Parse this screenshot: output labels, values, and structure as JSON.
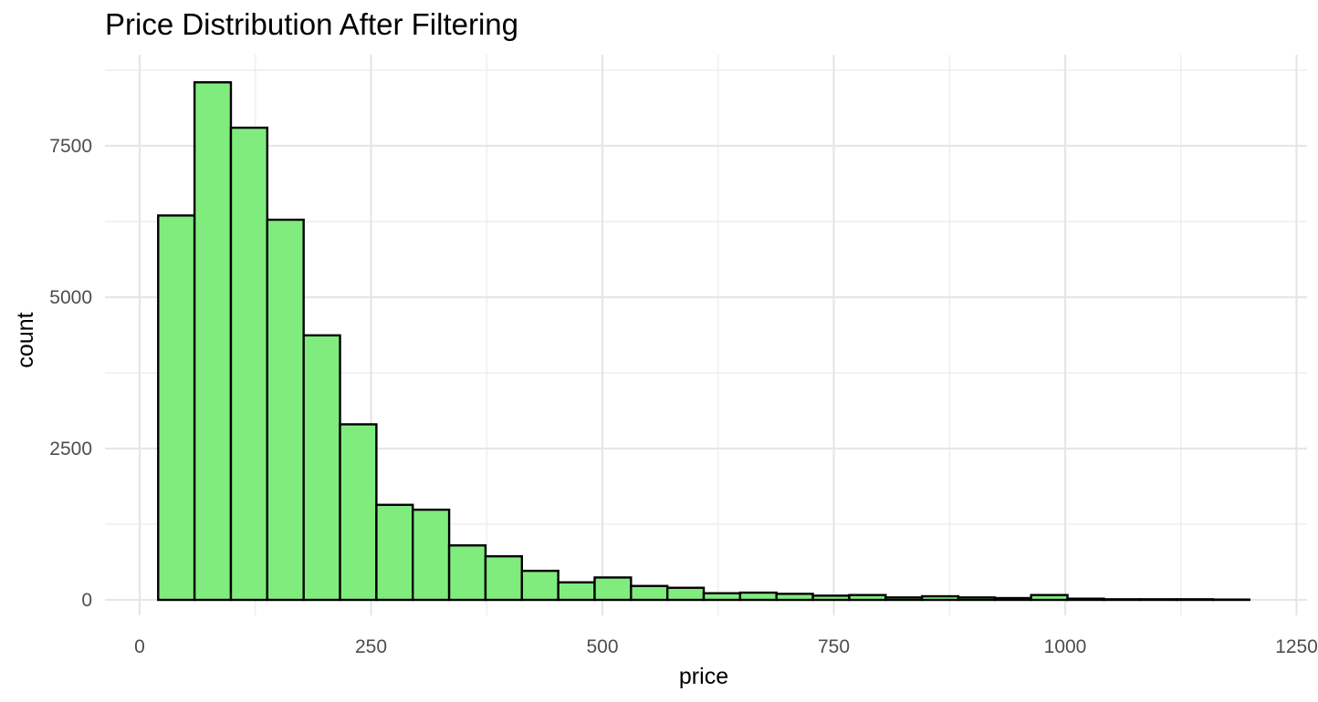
{
  "chart_data": {
    "type": "bar",
    "title": "Price Distribution After Filtering",
    "xlabel": "price",
    "ylabel": "count",
    "xlim": [
      -20,
      1260
    ],
    "ylim": [
      0,
      8900
    ],
    "x_ticks": [
      "0",
      "250",
      "500",
      "750",
      "1000",
      "1250"
    ],
    "y_ticks": [
      "0",
      "2500",
      "5000",
      "7500"
    ],
    "grid": true,
    "bin_width": 39.3,
    "bins_start": 20,
    "values": [
      6350,
      8550,
      7800,
      6280,
      4370,
      2900,
      1570,
      1490,
      900,
      720,
      480,
      290,
      370,
      230,
      200,
      110,
      120,
      100,
      70,
      80,
      40,
      60,
      40,
      30,
      80,
      20,
      10,
      10,
      10,
      5
    ],
    "fill_color": "#80EC7E",
    "stroke_color": "#000000"
  }
}
